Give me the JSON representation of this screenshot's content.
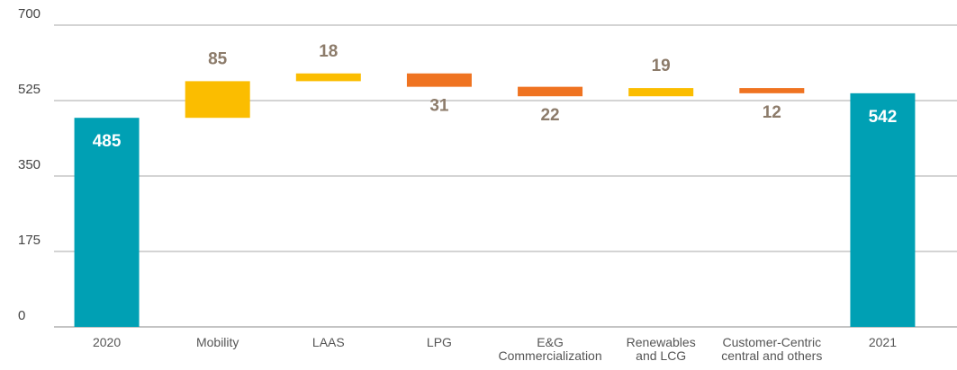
{
  "chart_data": {
    "type": "waterfall",
    "categories": [
      "2020",
      "Mobility",
      "LAAS",
      "LPG",
      "E&G\nCommercialization",
      "Renewables\nand LCG",
      "Customer-Centric\ncentral and others",
      "2021"
    ],
    "values": [
      485,
      85,
      18,
      -31,
      -22,
      19,
      -12,
      542
    ],
    "value_labels": [
      "485",
      "85",
      "18",
      "31",
      "22",
      "19",
      "12",
      "542"
    ],
    "measure": [
      "total",
      "relative",
      "relative",
      "relative",
      "relative",
      "relative",
      "relative",
      "total"
    ],
    "colors": {
      "total": "#00a0b4",
      "increase": "#fbbd00",
      "decrease": "#ef7321"
    },
    "ylim": [
      0,
      700
    ],
    "yticks": [
      0,
      175,
      350,
      525,
      700
    ],
    "grid": true
  }
}
